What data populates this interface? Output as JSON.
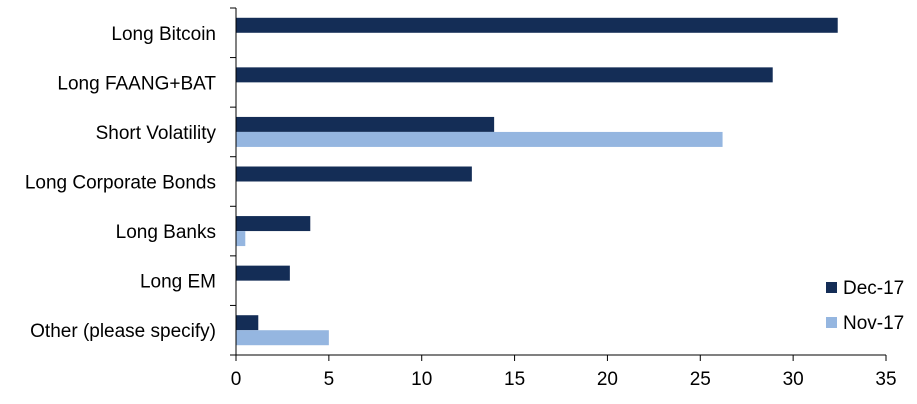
{
  "chart_data": {
    "type": "bar",
    "orientation": "horizontal",
    "categories": [
      "Long Bitcoin",
      "Long FAANG+BAT",
      "Short Volatility",
      "Long Corporate Bonds",
      "Long Banks",
      "Long EM",
      "Other (please specify)"
    ],
    "series": [
      {
        "name": "Dec-17",
        "color": "#142D56",
        "values": [
          32.4,
          28.9,
          13.9,
          12.7,
          4.0,
          2.9,
          1.2
        ]
      },
      {
        "name": "Nov-17",
        "color": "#95B6E0",
        "values": [
          null,
          null,
          26.2,
          null,
          0.5,
          null,
          5.0
        ]
      }
    ],
    "xlim": [
      0,
      35
    ],
    "xticks": [
      0,
      5,
      10,
      15,
      20,
      25,
      30,
      35
    ],
    "title": "",
    "xlabel": "",
    "ylabel": "",
    "grid": false,
    "legend_position": "bottom-right"
  }
}
